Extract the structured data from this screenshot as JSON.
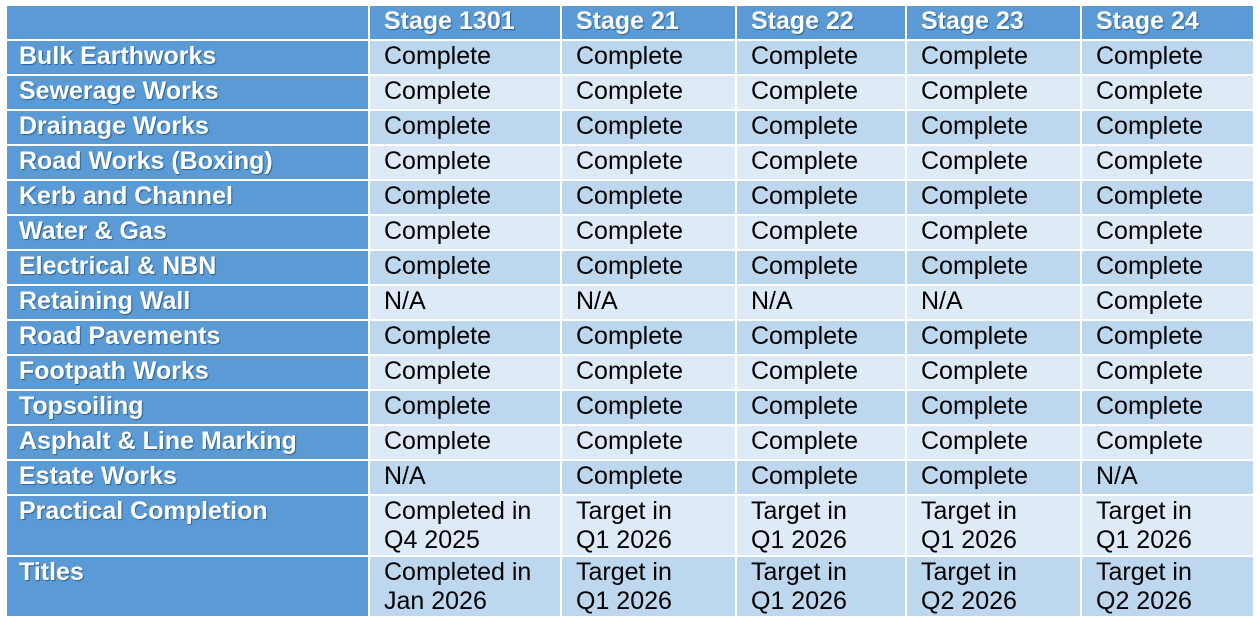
{
  "table": {
    "columns": [
      "Stage 1301",
      "Stage 21",
      "Stage 22",
      "Stage 23",
      "Stage 24"
    ],
    "rows": [
      {
        "label": "Bulk Earthworks",
        "cells": [
          "Complete",
          "Complete",
          "Complete",
          "Complete",
          "Complete"
        ]
      },
      {
        "label": "Sewerage Works",
        "cells": [
          "Complete",
          "Complete",
          "Complete",
          "Complete",
          "Complete"
        ]
      },
      {
        "label": "Drainage Works",
        "cells": [
          "Complete",
          "Complete",
          "Complete",
          "Complete",
          "Complete"
        ]
      },
      {
        "label": "Road Works (Boxing)",
        "cells": [
          "Complete",
          "Complete",
          "Complete",
          "Complete",
          "Complete"
        ]
      },
      {
        "label": "Kerb and Channel",
        "cells": [
          "Complete",
          "Complete",
          "Complete",
          "Complete",
          "Complete"
        ]
      },
      {
        "label": "Water & Gas",
        "cells": [
          "Complete",
          "Complete",
          "Complete",
          "Complete",
          "Complete"
        ]
      },
      {
        "label": "Electrical & NBN",
        "cells": [
          "Complete",
          "Complete",
          "Complete",
          "Complete",
          "Complete"
        ]
      },
      {
        "label": "Retaining Wall",
        "cells": [
          "N/A",
          "N/A",
          "N/A",
          "N/A",
          "Complete"
        ]
      },
      {
        "label": "Road Pavements",
        "cells": [
          "Complete",
          "Complete",
          "Complete",
          "Complete",
          "Complete"
        ]
      },
      {
        "label": "Footpath Works",
        "cells": [
          "Complete",
          "Complete",
          "Complete",
          "Complete",
          "Complete"
        ]
      },
      {
        "label": "Topsoiling",
        "cells": [
          "Complete",
          "Complete",
          "Complete",
          "Complete",
          "Complete"
        ]
      },
      {
        "label": "Asphalt & Line Marking",
        "cells": [
          "Complete",
          "Complete",
          "Complete",
          "Complete",
          "Complete"
        ]
      },
      {
        "label": "Estate Works",
        "cells": [
          "N/A",
          "Complete",
          "Complete",
          "Complete",
          "N/A"
        ]
      },
      {
        "label": "Practical Completion",
        "cells": [
          "Completed in\nQ4 2025",
          "Target in\nQ1 2026",
          "Target in\nQ1 2026",
          "Target in\nQ1 2026",
          "Target in\nQ1 2026"
        ]
      },
      {
        "label": "Titles",
        "cells": [
          "Completed in\nJan 2026",
          "Target in\nQ1 2026",
          "Target in\nQ1 2026",
          "Target in\nQ2 2026",
          "Target in\nQ2 2026"
        ]
      }
    ]
  }
}
